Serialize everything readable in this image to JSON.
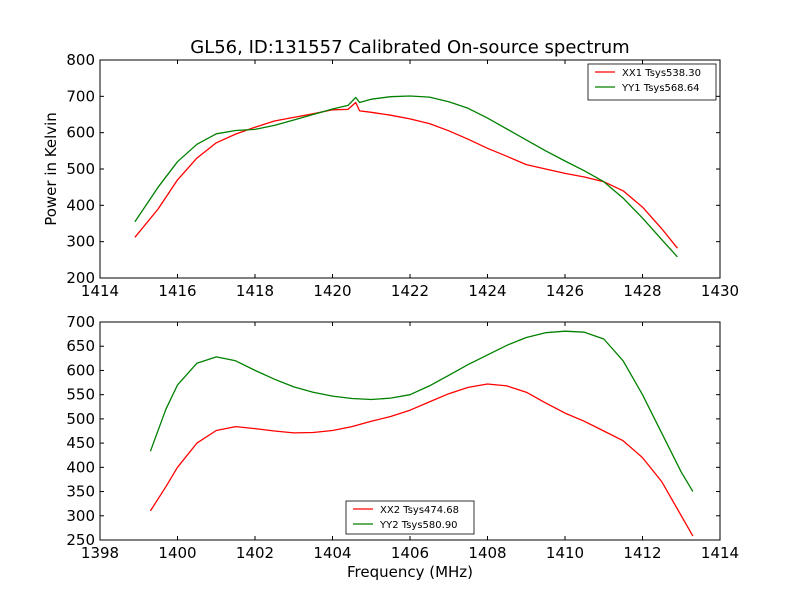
{
  "figure": {
    "title": "GL56, ID:131557 Calibrated On-source spectrum",
    "background": "#ffffff"
  },
  "chart_data": [
    {
      "type": "line",
      "title": "GL56, ID:131557 Calibrated On-source spectrum",
      "xlabel": "",
      "ylabel": "Power in Kelvin",
      "xlim": [
        1414,
        1430
      ],
      "ylim": [
        200,
        800
      ],
      "xticks": [
        1414,
        1416,
        1418,
        1420,
        1422,
        1424,
        1426,
        1428,
        1430
      ],
      "yticks": [
        200,
        300,
        400,
        500,
        600,
        700,
        800
      ],
      "grid": false,
      "legend_position": "top-right",
      "series": [
        {
          "name": "XX1 Tsys538.30",
          "color": "#ff0000",
          "x": [
            1414.9,
            1415.5,
            1416.0,
            1416.5,
            1417.0,
            1417.5,
            1418.0,
            1418.5,
            1419.0,
            1419.5,
            1420.0,
            1420.4,
            1420.6,
            1420.7,
            1421.0,
            1421.5,
            1422.0,
            1422.5,
            1423.0,
            1423.5,
            1424.0,
            1424.5,
            1425.0,
            1425.5,
            1426.0,
            1426.5,
            1427.0,
            1427.5,
            1428.0,
            1428.5,
            1428.9
          ],
          "y": [
            312,
            390,
            470,
            530,
            572,
            596,
            615,
            632,
            642,
            652,
            663,
            664,
            683,
            660,
            656,
            648,
            638,
            625,
            605,
            582,
            557,
            535,
            512,
            500,
            488,
            478,
            465,
            440,
            395,
            335,
            282
          ]
        },
        {
          "name": "YY1 Tsys568.64",
          "color": "#008000",
          "x": [
            1414.9,
            1415.5,
            1416.0,
            1416.5,
            1417.0,
            1417.5,
            1418.0,
            1418.5,
            1419.0,
            1419.5,
            1420.0,
            1420.4,
            1420.6,
            1420.7,
            1421.0,
            1421.5,
            1422.0,
            1422.5,
            1423.0,
            1423.5,
            1424.0,
            1424.5,
            1425.0,
            1425.5,
            1426.0,
            1426.5,
            1427.0,
            1427.5,
            1428.0,
            1428.5,
            1428.9
          ],
          "y": [
            355,
            450,
            520,
            568,
            597,
            606,
            609,
            620,
            635,
            650,
            665,
            675,
            697,
            683,
            692,
            699,
            701,
            698,
            685,
            667,
            640,
            610,
            580,
            550,
            522,
            495,
            465,
            420,
            365,
            305,
            258
          ]
        }
      ]
    },
    {
      "type": "line",
      "title": "",
      "xlabel": "Frequency (MHz)",
      "ylabel": "",
      "xlim": [
        1398,
        1414
      ],
      "ylim": [
        250,
        700
      ],
      "xticks": [
        1398,
        1400,
        1402,
        1404,
        1406,
        1408,
        1410,
        1412,
        1414
      ],
      "yticks": [
        250,
        300,
        350,
        400,
        450,
        500,
        550,
        600,
        650,
        700
      ],
      "grid": false,
      "legend_position": "bottom-center",
      "series": [
        {
          "name": "XX2 Tsys474.68",
          "color": "#ff0000",
          "x": [
            1399.3,
            1399.7,
            1400.0,
            1400.5,
            1401.0,
            1401.5,
            1402.0,
            1402.5,
            1403.0,
            1403.5,
            1404.0,
            1404.5,
            1405.0,
            1405.5,
            1406.0,
            1406.5,
            1407.0,
            1407.5,
            1408.0,
            1408.5,
            1409.0,
            1409.5,
            1410.0,
            1410.5,
            1411.0,
            1411.5,
            1412.0,
            1412.5,
            1413.0,
            1413.3
          ],
          "y": [
            310,
            360,
            400,
            450,
            476,
            484,
            480,
            475,
            471,
            472,
            476,
            484,
            495,
            505,
            518,
            535,
            552,
            565,
            572,
            568,
            555,
            533,
            512,
            495,
            475,
            455,
            420,
            370,
            300,
            258
          ]
        },
        {
          "name": "YY2 Tsys580.90",
          "color": "#008000",
          "x": [
            1399.3,
            1399.7,
            1400.0,
            1400.5,
            1401.0,
            1401.5,
            1402.0,
            1402.5,
            1403.0,
            1403.5,
            1404.0,
            1404.5,
            1405.0,
            1405.5,
            1406.0,
            1406.5,
            1407.0,
            1407.5,
            1408.0,
            1408.5,
            1409.0,
            1409.5,
            1410.0,
            1410.5,
            1411.0,
            1411.5,
            1412.0,
            1412.5,
            1413.0,
            1413.3
          ],
          "y": [
            433,
            520,
            570,
            615,
            628,
            620,
            600,
            582,
            566,
            555,
            547,
            542,
            540,
            543,
            550,
            568,
            590,
            612,
            632,
            652,
            668,
            678,
            681,
            679,
            665,
            620,
            550,
            470,
            390,
            350
          ]
        }
      ]
    }
  ]
}
